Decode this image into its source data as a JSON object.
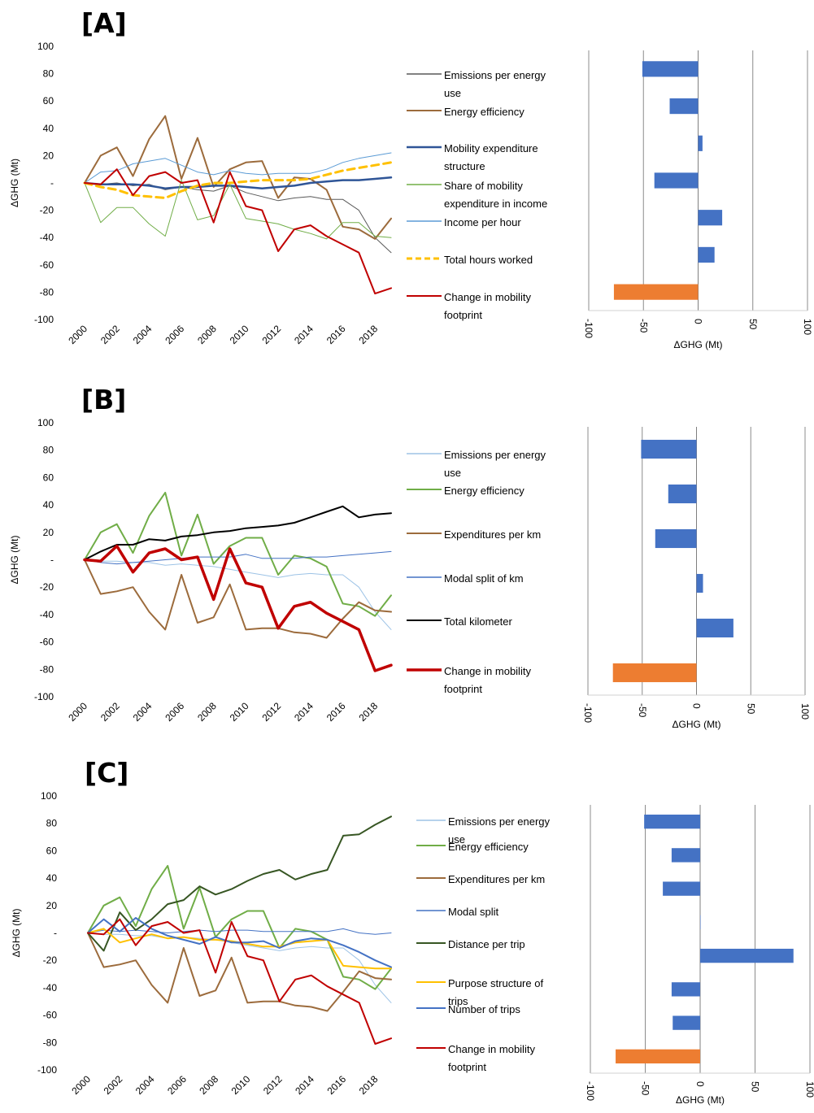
{
  "chart_data": [
    {
      "panel": "[A]",
      "type": "line",
      "ylabel": "ΔGHG (Mt)",
      "ylim": [
        -100,
        100
      ],
      "yticks": [
        "100",
        "80",
        "60",
        "40",
        "20",
        "-",
        "-20",
        "-40",
        "-60",
        "-80",
        "-100"
      ],
      "xticks": [
        "2000",
        "2002",
        "2004",
        "2006",
        "2008",
        "2010",
        "2012",
        "2014",
        "2016",
        "2018"
      ],
      "x": [
        2000,
        2001,
        2002,
        2003,
        2004,
        2005,
        2006,
        2007,
        2008,
        2009,
        2010,
        2011,
        2012,
        2013,
        2014,
        2015,
        2016,
        2017,
        2018,
        2019
      ],
      "series": [
        {
          "name": "Emissions per energy use",
          "color": "#595959",
          "width": 1,
          "values": [
            0,
            -1,
            0,
            -2,
            -1,
            -5,
            -3,
            -5,
            -6,
            -2,
            -7,
            -10,
            -13,
            -11,
            -10,
            -12,
            -12,
            -20,
            -40,
            -51
          ]
        },
        {
          "name": "Energy efficiency",
          "color": "#9c6b3c",
          "width": 2,
          "values": [
            0,
            20,
            26,
            5,
            32,
            49,
            3,
            33,
            -3,
            10,
            15,
            16,
            -11,
            4,
            3,
            -5,
            -32,
            -34,
            -41,
            -26
          ]
        },
        {
          "name": "Mobility expenditure structure",
          "color": "#2f5597",
          "width": 2.5,
          "values": [
            0,
            -1,
            -1,
            -1,
            -2,
            -4,
            -3,
            -3,
            -2,
            -2,
            -3,
            -4,
            -3,
            -2,
            0,
            1,
            2,
            2,
            3,
            4
          ]
        },
        {
          "name": "Share of mobility expenditure in income",
          "color": "#70ad47",
          "width": 1,
          "values": [
            0,
            -29,
            -18,
            -18,
            -30,
            -39,
            2,
            -27,
            -24,
            -1,
            -26,
            -28,
            -30,
            -34,
            -37,
            -41,
            -29,
            -29,
            -39,
            -40
          ]
        },
        {
          "name": "Income per hour",
          "color": "#5b9bd5",
          "width": 1,
          "values": [
            0,
            8,
            9,
            14,
            16,
            18,
            13,
            8,
            6,
            9,
            7,
            6,
            7,
            7,
            7,
            10,
            15,
            18,
            20,
            22
          ]
        },
        {
          "name": "Total hours worked",
          "color": "#ffc000",
          "width": 3,
          "dash": "9,6",
          "values": [
            0,
            -3,
            -5,
            -9,
            -10,
            -11,
            -6,
            -2,
            0,
            0,
            1,
            2,
            2,
            2,
            3,
            6,
            9,
            11,
            13,
            15
          ]
        },
        {
          "name": "Change in mobility footprint",
          "color": "#c00000",
          "width": 2,
          "values": [
            0,
            -1,
            10,
            -9,
            5,
            8,
            0,
            2,
            -29,
            8,
            -17,
            -20,
            -50,
            -34,
            -31,
            -39,
            -45,
            -51,
            -81,
            -77
          ]
        }
      ],
      "bar_xlabel": "ΔGHG (Mt)",
      "bar_xlim": [
        -100,
        100
      ],
      "bar_xticks": [
        "-100",
        "-50",
        "0",
        "50",
        "100"
      ],
      "bars": [
        {
          "name": "Emissions per energy use",
          "value": -51,
          "color": "#4472c4"
        },
        {
          "name": "Energy efficiency",
          "value": -26,
          "color": "#4472c4"
        },
        {
          "name": "Mobility expenditure structure",
          "value": 4,
          "color": "#4472c4"
        },
        {
          "name": "Share of mobility expenditure in income",
          "value": -40,
          "color": "#4472c4"
        },
        {
          "name": "Income per hour",
          "value": 22,
          "color": "#4472c4"
        },
        {
          "name": "Total hours worked",
          "value": 15,
          "color": "#4472c4"
        },
        {
          "name": "Change in mobility footprint",
          "value": -77,
          "color": "#ed7d31"
        }
      ]
    },
    {
      "panel": "[B]",
      "type": "line",
      "ylabel": "ΔGHG (Mt)",
      "ylim": [
        -100,
        100
      ],
      "yticks": [
        "100",
        "80",
        "60",
        "40",
        "20",
        "-",
        "-20",
        "-40",
        "-60",
        "-80",
        "-100"
      ],
      "xticks": [
        "2000",
        "2002",
        "2004",
        "2006",
        "2008",
        "2010",
        "2012",
        "2014",
        "2016",
        "2018"
      ],
      "x": [
        2000,
        2001,
        2002,
        2003,
        2004,
        2005,
        2006,
        2007,
        2008,
        2009,
        2010,
        2011,
        2012,
        2013,
        2014,
        2015,
        2016,
        2017,
        2018,
        2019
      ],
      "series": [
        {
          "name": "Emissions per energy use",
          "color": "#9dc3e6",
          "width": 1,
          "values": [
            0,
            -1,
            -1,
            -2,
            -2,
            -4,
            -3,
            -4,
            -5,
            -7,
            -9,
            -11,
            -13,
            -11,
            -10,
            -11,
            -11,
            -20,
            -38,
            -51
          ]
        },
        {
          "name": "Energy efficiency",
          "color": "#70ad47",
          "width": 2,
          "values": [
            0,
            20,
            26,
            5,
            32,
            49,
            3,
            33,
            -3,
            10,
            16,
            16,
            -11,
            3,
            1,
            -5,
            -32,
            -34,
            -41,
            -26
          ]
        },
        {
          "name": "Expenditures per km",
          "color": "#9c6b3c",
          "width": 2,
          "values": [
            0,
            -25,
            -23,
            -20,
            -38,
            -51,
            -11,
            -46,
            -42,
            -18,
            -51,
            -50,
            -50,
            -53,
            -54,
            -57,
            -43,
            -31,
            -37,
            -38
          ]
        },
        {
          "name": "Modal split of km",
          "color": "#4472c4",
          "width": 1,
          "values": [
            0,
            -2,
            -3,
            -2,
            -1,
            0,
            1,
            2,
            2,
            2,
            4,
            1,
            1,
            1,
            2,
            2,
            3,
            4,
            5,
            6
          ]
        },
        {
          "name": "Total kilometer",
          "color": "#000000",
          "width": 2,
          "values": [
            0,
            6,
            11,
            11,
            15,
            14,
            17,
            18,
            20,
            21,
            23,
            24,
            25,
            27,
            31,
            35,
            39,
            31,
            33,
            34
          ]
        },
        {
          "name": "Change in mobility footprint",
          "color": "#c00000",
          "width": 3.5,
          "values": [
            0,
            -1,
            10,
            -9,
            5,
            8,
            0,
            2,
            -29,
            8,
            -17,
            -20,
            -50,
            -34,
            -31,
            -39,
            -45,
            -51,
            -81,
            -77
          ]
        }
      ],
      "bar_xlabel": "ΔGHG (Mt)",
      "bar_xlim": [
        -100,
        100
      ],
      "bar_xticks": [
        "-100",
        "-50",
        "0",
        "50",
        "100"
      ],
      "bars": [
        {
          "name": "Emissions per energy use",
          "value": -51,
          "color": "#4472c4"
        },
        {
          "name": "Energy efficiency",
          "value": -26,
          "color": "#4472c4"
        },
        {
          "name": "Expenditures per km",
          "value": -38,
          "color": "#4472c4"
        },
        {
          "name": "Modal split of km",
          "value": 6,
          "color": "#4472c4"
        },
        {
          "name": "Total kilometer",
          "value": 34,
          "color": "#4472c4"
        },
        {
          "name": "Change in mobility footprint",
          "value": -77,
          "color": "#ed7d31"
        }
      ]
    },
    {
      "panel": "[C]",
      "type": "line",
      "ylabel": "ΔGHG (Mt)",
      "ylim": [
        -100,
        100
      ],
      "yticks": [
        "100",
        "80",
        "60",
        "40",
        "20",
        "-",
        "-20",
        "-40",
        "-60",
        "-80",
        "-100"
      ],
      "xticks": [
        "2000",
        "2002",
        "2004",
        "2006",
        "2008",
        "2010",
        "2012",
        "2014",
        "2016",
        "2018"
      ],
      "x": [
        2000,
        2001,
        2002,
        2003,
        2004,
        2005,
        2006,
        2007,
        2008,
        2009,
        2010,
        2011,
        2012,
        2013,
        2014,
        2015,
        2016,
        2017,
        2018,
        2019
      ],
      "series": [
        {
          "name": "Emissions per energy use",
          "color": "#9dc3e6",
          "width": 1,
          "values": [
            0,
            -1,
            -1,
            -2,
            -2,
            -4,
            -3,
            -4,
            -5,
            -7,
            -9,
            -11,
            -13,
            -11,
            -10,
            -11,
            -11,
            -20,
            -38,
            -51
          ]
        },
        {
          "name": "Energy efficiency",
          "color": "#70ad47",
          "width": 2,
          "values": [
            0,
            20,
            26,
            5,
            32,
            49,
            3,
            33,
            -3,
            10,
            16,
            16,
            -11,
            3,
            1,
            -5,
            -32,
            -34,
            -41,
            -26
          ]
        },
        {
          "name": "Expenditures per km",
          "color": "#9c6b3c",
          "width": 2,
          "values": [
            0,
            -25,
            -23,
            -20,
            -38,
            -51,
            -11,
            -46,
            -42,
            -18,
            -51,
            -50,
            -50,
            -53,
            -54,
            -57,
            -43,
            -28,
            -33,
            -34
          ]
        },
        {
          "name": "Modal split",
          "color": "#4472c4",
          "width": 1,
          "values": [
            0,
            2,
            1,
            2,
            1,
            0,
            1,
            2,
            1,
            2,
            2,
            1,
            1,
            1,
            1,
            1,
            3,
            0,
            -1,
            0
          ]
        },
        {
          "name": "Distance per trip",
          "color": "#375623",
          "width": 2,
          "values": [
            0,
            -13,
            15,
            2,
            10,
            21,
            24,
            34,
            28,
            32,
            38,
            43,
            46,
            39,
            43,
            46,
            71,
            72,
            79,
            85
          ]
        },
        {
          "name": "Purpose structure of trips",
          "color": "#ffc000",
          "width": 2,
          "values": [
            0,
            3,
            -7,
            -4,
            -1,
            -4,
            -3,
            -5,
            -5,
            -6,
            -8,
            -10,
            -10,
            -7,
            -6,
            -5,
            -24,
            -25,
            -26,
            -26
          ]
        },
        {
          "name": "Number of trips",
          "color": "#4472c4",
          "width": 2,
          "values": [
            0,
            10,
            1,
            11,
            3,
            -2,
            -5,
            -8,
            -3,
            -7,
            -7,
            -6,
            -11,
            -6,
            -4,
            -5,
            -9,
            -14,
            -20,
            -25
          ]
        },
        {
          "name": "Change in mobility footprint",
          "color": "#c00000",
          "width": 2,
          "values": [
            0,
            -1,
            10,
            -9,
            5,
            8,
            0,
            2,
            -29,
            8,
            -17,
            -20,
            -50,
            -34,
            -31,
            -39,
            -45,
            -51,
            -81,
            -77
          ]
        }
      ],
      "bar_xlabel": "ΔGHG (Mt)",
      "bar_xlim": [
        -100,
        100
      ],
      "bar_xticks": [
        "-100",
        "-50",
        "0",
        "50",
        "100"
      ],
      "bars": [
        {
          "name": "Emissions per energy use",
          "value": -51,
          "color": "#4472c4"
        },
        {
          "name": "Energy efficiency",
          "value": -26,
          "color": "#4472c4"
        },
        {
          "name": "Expenditures per km",
          "value": -34,
          "color": "#4472c4"
        },
        {
          "name": "Modal split",
          "value": 0,
          "color": "#4472c4"
        },
        {
          "name": "Distance per trip",
          "value": 85,
          "color": "#4472c4"
        },
        {
          "name": "Purpose structure of trips",
          "value": -26,
          "color": "#4472c4"
        },
        {
          "name": "Number of trips",
          "value": -25,
          "color": "#4472c4"
        },
        {
          "name": "Change in mobility footprint",
          "value": -77,
          "color": "#ed7d31"
        }
      ]
    }
  ],
  "legends": [
    [
      {
        "lines": [
          "Emissions per energy",
          "use"
        ]
      },
      {
        "lines": [
          "Energy efficiency"
        ]
      },
      {
        "lines": [
          "Mobility expenditure",
          "structure"
        ]
      },
      {
        "lines": [
          "Share of mobility",
          "expenditure in income"
        ]
      },
      {
        "lines": [
          "Income per hour"
        ]
      },
      {
        "lines": [
          "Total hours worked"
        ]
      },
      {
        "lines": [
          "Change in mobility",
          "footprint"
        ]
      }
    ],
    [
      {
        "lines": [
          "Emissions per energy",
          "use"
        ]
      },
      {
        "lines": [
          "Energy efficiency"
        ]
      },
      {
        "lines": [
          "Expenditures per km"
        ]
      },
      {
        "lines": [
          "Modal split of km"
        ]
      },
      {
        "lines": [
          "Total kilometer"
        ]
      },
      {
        "lines": [
          "Change in mobility",
          "footprint"
        ]
      }
    ],
    [
      {
        "lines": [
          "Emissions per energy",
          "use"
        ]
      },
      {
        "lines": [
          "Energy efficiency"
        ]
      },
      {
        "lines": [
          "Expenditures per km"
        ]
      },
      {
        "lines": [
          "Modal split"
        ]
      },
      {
        "lines": [
          "Distance per trip"
        ]
      },
      {
        "lines": [
          "Purpose structure of",
          "trips"
        ]
      },
      {
        "lines": [
          "Number of trips"
        ]
      },
      {
        "lines": [
          "Change in mobility",
          "footprint"
        ]
      }
    ]
  ]
}
